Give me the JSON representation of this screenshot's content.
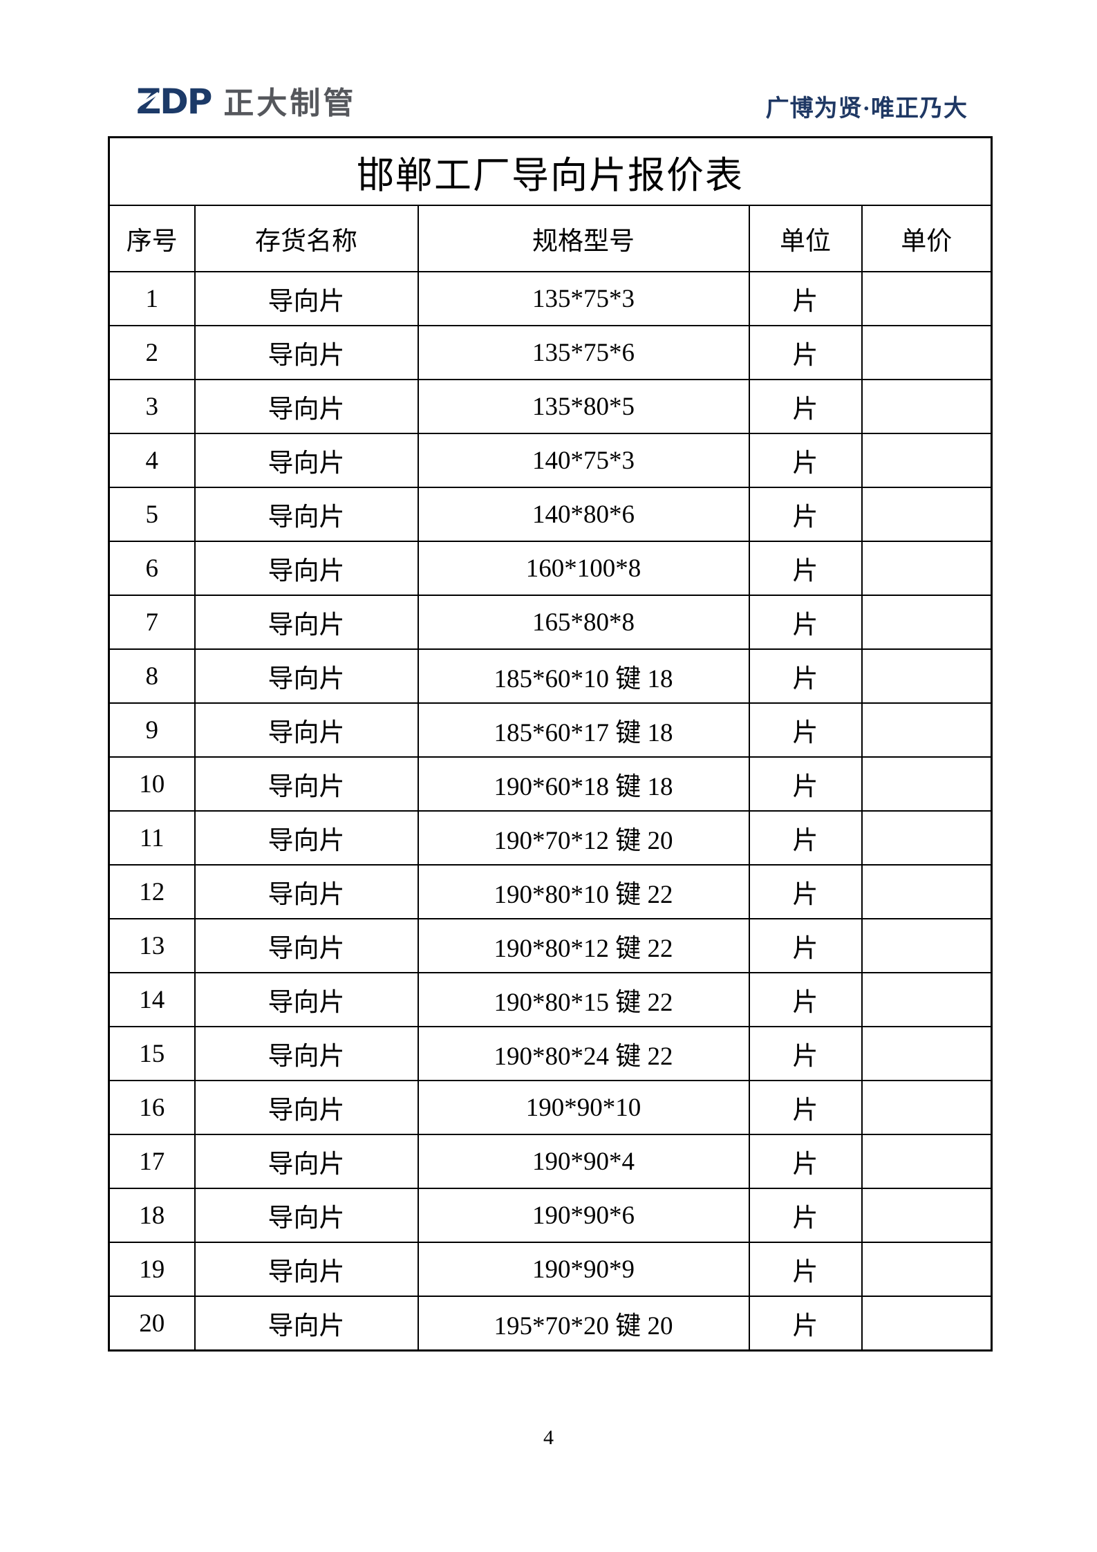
{
  "header": {
    "logo_text": "ZDP",
    "company_name": "正大制管",
    "slogan": "广博为贤·唯正乃大"
  },
  "table": {
    "title": "邯郸工厂导向片报价表",
    "columns": [
      "序号",
      "存货名称",
      "规格型号",
      "单位",
      "单价"
    ],
    "rows": [
      {
        "no": "1",
        "name": "导向片",
        "spec": "135*75*3",
        "unit": "片",
        "price": ""
      },
      {
        "no": "2",
        "name": "导向片",
        "spec": "135*75*6",
        "unit": "片",
        "price": ""
      },
      {
        "no": "3",
        "name": "导向片",
        "spec": "135*80*5",
        "unit": "片",
        "price": ""
      },
      {
        "no": "4",
        "name": "导向片",
        "spec": "140*75*3",
        "unit": "片",
        "price": ""
      },
      {
        "no": "5",
        "name": "导向片",
        "spec": "140*80*6",
        "unit": "片",
        "price": ""
      },
      {
        "no": "6",
        "name": "导向片",
        "spec": "160*100*8",
        "unit": "片",
        "price": ""
      },
      {
        "no": "7",
        "name": "导向片",
        "spec": "165*80*8",
        "unit": "片",
        "price": ""
      },
      {
        "no": "8",
        "name": "导向片",
        "spec": "185*60*10 键 18",
        "unit": "片",
        "price": ""
      },
      {
        "no": "9",
        "name": "导向片",
        "spec": "185*60*17 键 18",
        "unit": "片",
        "price": ""
      },
      {
        "no": "10",
        "name": "导向片",
        "spec": "190*60*18 键 18",
        "unit": "片",
        "price": ""
      },
      {
        "no": "11",
        "name": "导向片",
        "spec": "190*70*12 键 20",
        "unit": "片",
        "price": ""
      },
      {
        "no": "12",
        "name": "导向片",
        "spec": "190*80*10 键 22",
        "unit": "片",
        "price": ""
      },
      {
        "no": "13",
        "name": "导向片",
        "spec": "190*80*12 键 22",
        "unit": "片",
        "price": ""
      },
      {
        "no": "14",
        "name": "导向片",
        "spec": "190*80*15 键 22",
        "unit": "片",
        "price": ""
      },
      {
        "no": "15",
        "name": "导向片",
        "spec": "190*80*24 键 22",
        "unit": "片",
        "price": ""
      },
      {
        "no": "16",
        "name": "导向片",
        "spec": "190*90*10",
        "unit": "片",
        "price": ""
      },
      {
        "no": "17",
        "name": "导向片",
        "spec": "190*90*4",
        "unit": "片",
        "price": ""
      },
      {
        "no": "18",
        "name": "导向片",
        "spec": "190*90*6",
        "unit": "片",
        "price": ""
      },
      {
        "no": "19",
        "name": "导向片",
        "spec": "190*90*9",
        "unit": "片",
        "price": ""
      },
      {
        "no": "20",
        "name": "导向片",
        "spec": "195*70*20 键 20",
        "unit": "片",
        "price": ""
      }
    ]
  },
  "footer": {
    "page_number": "4"
  },
  "colors": {
    "logo_blue": "#1c3a68",
    "logo_gray": "#55575c",
    "slogan_blue": "#1f3864",
    "border_black": "#000000"
  }
}
